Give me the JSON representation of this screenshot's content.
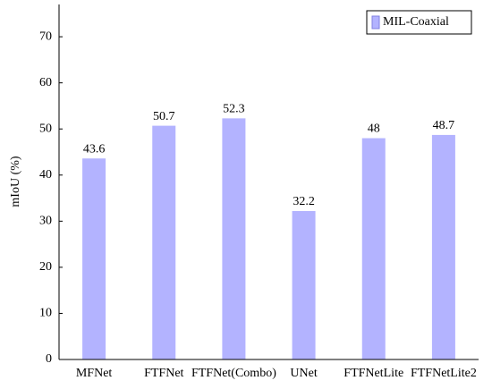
{
  "chart_data": {
    "type": "bar",
    "y_label": "mIoU (%)",
    "categories": [
      "MFNet",
      "FTFNet",
      "FTFNet(Combo)",
      "UNet",
      "FTFNetLite",
      "FTFNetLite2"
    ],
    "series": [
      {
        "name": "MIL-Coaxial",
        "color": "#b3b3ff",
        "values": [
          43.6,
          50.7,
          52.3,
          32.2,
          48,
          48.7
        ]
      }
    ],
    "ylim": [
      0,
      77
    ],
    "yticks": [
      0,
      10,
      20,
      30,
      40,
      50,
      60,
      70
    ],
    "grid": false,
    "legend": "top-right"
  }
}
